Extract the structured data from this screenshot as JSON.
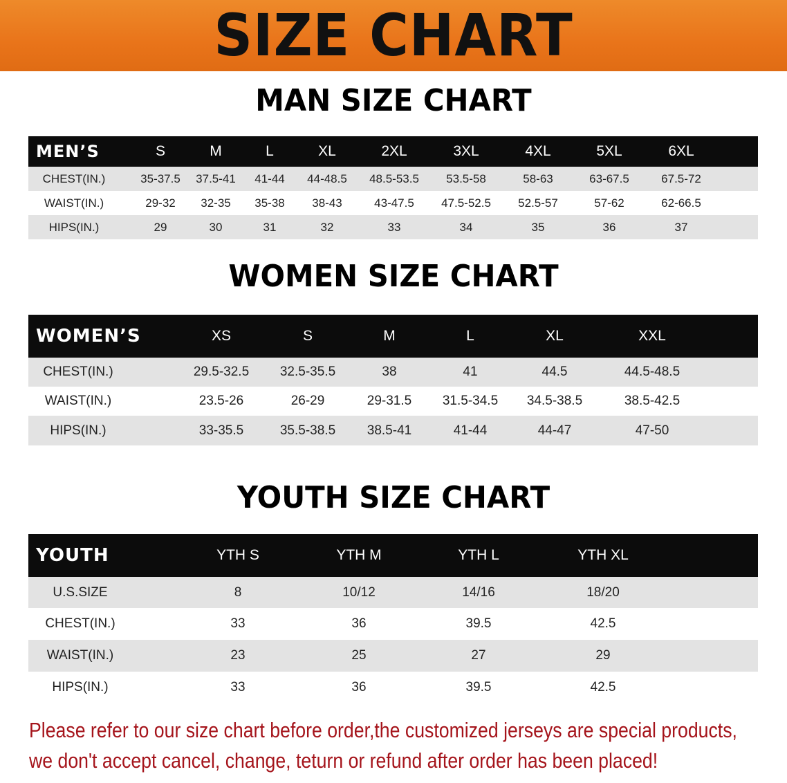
{
  "banner": {
    "title": "SIZE CHART"
  },
  "colors": {
    "banner": "#e9741a",
    "header_row": "#0c0c0c",
    "stripe": "#e3e3e3",
    "notice": "#a5141b"
  },
  "men": {
    "title": "MAN SIZE CHART",
    "header_label": "MEN’S",
    "sizes": [
      "S",
      "M",
      "L",
      "XL",
      "2XL",
      "3XL",
      "4XL",
      "5XL",
      "6XL"
    ],
    "rows": [
      {
        "label": "CHEST(IN.)",
        "values": [
          "35-37.5",
          "37.5-41",
          "41-44",
          "44-48.5",
          "48.5-53.5",
          "53.5-58",
          "58-63",
          "63-67.5",
          "67.5-72"
        ]
      },
      {
        "label": "WAIST(IN.)",
        "values": [
          "29-32",
          "32-35",
          "35-38",
          "38-43",
          "43-47.5",
          "47.5-52.5",
          "52.5-57",
          "57-62",
          "62-66.5"
        ]
      },
      {
        "label": "HIPS(IN.)",
        "values": [
          "29",
          "30",
          "31",
          "32",
          "33",
          "34",
          "35",
          "36",
          "37"
        ]
      }
    ]
  },
  "women": {
    "title": "WOMEN SIZE CHART",
    "header_label": "WOMEN’S",
    "sizes": [
      "XS",
      "S",
      "M",
      "L",
      "XL",
      "XXL"
    ],
    "rows": [
      {
        "label": "CHEST(IN.)",
        "values": [
          "29.5-32.5",
          "32.5-35.5",
          "38",
          "41",
          "44.5",
          "44.5-48.5"
        ]
      },
      {
        "label": "WAIST(IN.)",
        "values": [
          "23.5-26",
          "26-29",
          "29-31.5",
          "31.5-34.5",
          "34.5-38.5",
          "38.5-42.5"
        ]
      },
      {
        "label": "HIPS(IN.)",
        "values": [
          "33-35.5",
          "35.5-38.5",
          "38.5-41",
          "41-44",
          "44-47",
          "47-50"
        ]
      }
    ]
  },
  "youth": {
    "title": "YOUTH SIZE CHART",
    "header_label": "YOUTH",
    "sizes": [
      "YTH S",
      "YTH M",
      "YTH L",
      "YTH XL"
    ],
    "rows": [
      {
        "label": "U.S.SIZE",
        "values": [
          "8",
          "10/12",
          "14/16",
          "18/20"
        ]
      },
      {
        "label": "CHEST(IN.)",
        "values": [
          "33",
          "36",
          "39.5",
          "42.5"
        ]
      },
      {
        "label": "WAIST(IN.)",
        "values": [
          "23",
          "25",
          "27",
          "29"
        ]
      },
      {
        "label": "HIPS(IN.)",
        "values": [
          "33",
          "36",
          "39.5",
          "42.5"
        ]
      }
    ]
  },
  "notice": {
    "line1": "Please refer to our size chart before order,the customized jerseys are special products,",
    "line2": "we don't accept cancel, change, teturn or refund after order has been placed!"
  }
}
